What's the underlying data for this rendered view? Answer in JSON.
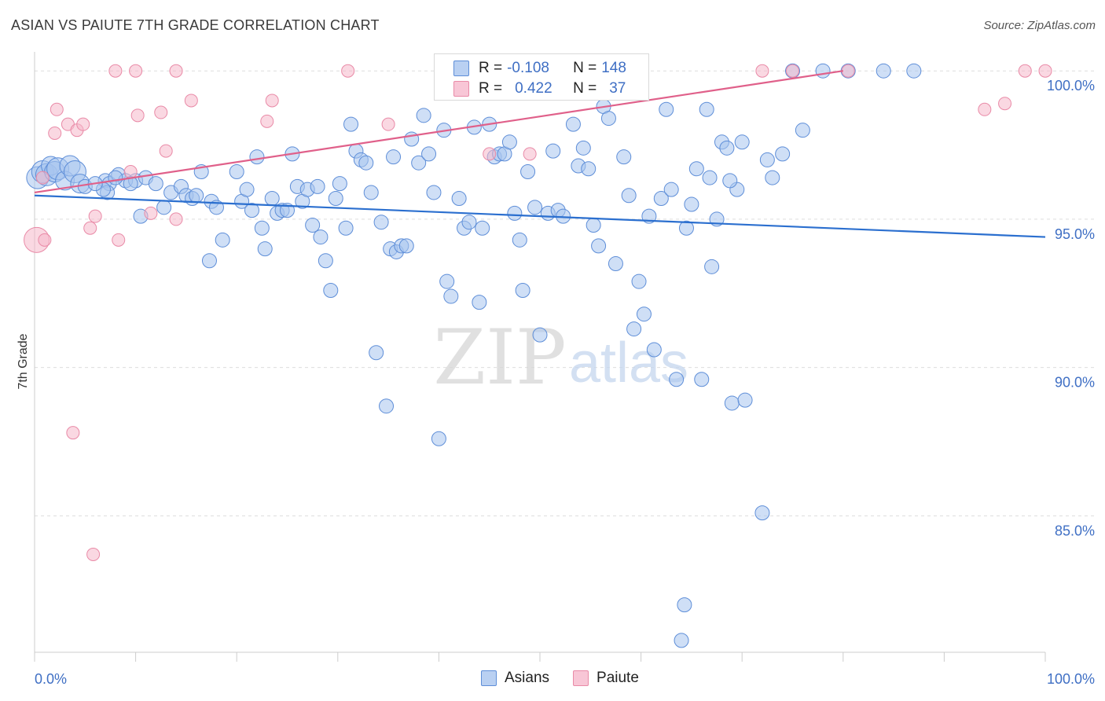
{
  "title": "ASIAN VS PAIUTE 7TH GRADE CORRELATION CHART",
  "source": "Source: ZipAtlas.com",
  "watermark": {
    "zip": "ZIP",
    "atlas": "atlas"
  },
  "legend": {
    "rows": [
      {
        "r_label": "R =",
        "r_value": "-0.108",
        "n_label": "N =",
        "n_value": "148"
      },
      {
        "r_label": "R =",
        "r_value": "0.422",
        "n_label": "N =",
        "n_value": "37"
      }
    ]
  },
  "bottom_legend": {
    "asians": "Asians",
    "paiute": "Paiute"
  },
  "colors": {
    "asians_fill": "#a8c4ee",
    "asians_stroke": "#5e8ed8",
    "asians_line": "#2b6fcf",
    "paiute_fill": "#f6b8cb",
    "paiute_stroke": "#e98aa7",
    "paiute_line": "#e0608a",
    "grid": "#dddddd",
    "tick_label": "#3f6fc4"
  },
  "chart_data": {
    "type": "scatter",
    "title": "ASIAN VS PAIUTE 7TH GRADE CORRELATION CHART",
    "xlabel": "",
    "ylabel": "7th Grade",
    "xlim": [
      0,
      100
    ],
    "ylim": [
      80.4,
      100.8
    ],
    "x_tick_labels": [
      "0.0%",
      "100.0%"
    ],
    "y_ticks": [
      85,
      90,
      95,
      100
    ],
    "y_tick_labels": [
      "85.0%",
      "90.0%",
      "95.0%",
      "100.0%"
    ],
    "grid": "horizontal dashed",
    "legend_position": "top-center",
    "series": [
      {
        "name": "Asians",
        "trend": {
          "x": [
            0,
            100
          ],
          "y": [
            95.8,
            94.4
          ]
        },
        "points": [
          [
            0.3,
            96.4
          ],
          [
            0.8,
            96.6
          ],
          [
            1.2,
            96.5
          ],
          [
            1.6,
            96.8
          ],
          [
            2.0,
            96.6
          ],
          [
            2.3,
            96.7
          ],
          [
            3.0,
            96.3
          ],
          [
            3.5,
            96.8
          ],
          [
            4.0,
            96.6
          ],
          [
            4.5,
            96.2
          ],
          [
            7.0,
            96.3
          ],
          [
            7.4,
            96.2
          ],
          [
            8.3,
            96.5
          ],
          [
            9.0,
            96.3
          ],
          [
            10.0,
            96.3
          ],
          [
            11.0,
            96.4
          ],
          [
            12.0,
            96.2
          ],
          [
            7.2,
            95.9
          ],
          [
            6.8,
            96.0
          ],
          [
            5.0,
            96.1
          ],
          [
            6.0,
            96.2
          ],
          [
            8.0,
            96.4
          ],
          [
            9.5,
            96.2
          ],
          [
            10.5,
            95.1
          ],
          [
            12.8,
            95.4
          ],
          [
            13.5,
            95.9
          ],
          [
            14.5,
            96.1
          ],
          [
            15.0,
            95.8
          ],
          [
            15.6,
            95.7
          ],
          [
            16.0,
            95.8
          ],
          [
            16.5,
            96.6
          ],
          [
            17.5,
            95.6
          ],
          [
            18.0,
            95.4
          ],
          [
            18.6,
            94.3
          ],
          [
            17.3,
            93.6
          ],
          [
            20.0,
            96.6
          ],
          [
            20.5,
            95.6
          ],
          [
            21.0,
            96.0
          ],
          [
            21.5,
            95.3
          ],
          [
            22.0,
            97.1
          ],
          [
            22.5,
            94.7
          ],
          [
            22.8,
            94.0
          ],
          [
            23.5,
            95.7
          ],
          [
            24.0,
            95.2
          ],
          [
            24.5,
            95.3
          ],
          [
            25.0,
            95.3
          ],
          [
            25.5,
            97.2
          ],
          [
            26.0,
            96.1
          ],
          [
            26.5,
            95.6
          ],
          [
            27.0,
            96.0
          ],
          [
            27.5,
            94.8
          ],
          [
            28.0,
            96.1
          ],
          [
            28.3,
            94.4
          ],
          [
            28.8,
            93.6
          ],
          [
            29.3,
            92.6
          ],
          [
            29.8,
            95.7
          ],
          [
            30.2,
            96.2
          ],
          [
            30.8,
            94.7
          ],
          [
            31.3,
            98.2
          ],
          [
            31.8,
            97.3
          ],
          [
            32.3,
            97.0
          ],
          [
            32.8,
            96.9
          ],
          [
            33.3,
            95.9
          ],
          [
            33.8,
            90.5
          ],
          [
            34.3,
            94.9
          ],
          [
            34.8,
            88.7
          ],
          [
            35.2,
            94.0
          ],
          [
            35.5,
            97.1
          ],
          [
            35.8,
            93.9
          ],
          [
            36.3,
            94.1
          ],
          [
            36.8,
            94.1
          ],
          [
            37.3,
            97.7
          ],
          [
            38.0,
            96.9
          ],
          [
            38.5,
            98.5
          ],
          [
            39.0,
            97.2
          ],
          [
            39.5,
            95.9
          ],
          [
            40.0,
            87.6
          ],
          [
            40.5,
            98.0
          ],
          [
            40.8,
            92.9
          ],
          [
            41.2,
            92.4
          ],
          [
            42.0,
            95.7
          ],
          [
            42.5,
            94.7
          ],
          [
            43.0,
            94.9
          ],
          [
            43.5,
            98.1
          ],
          [
            44.0,
            92.2
          ],
          [
            44.3,
            94.7
          ],
          [
            45.0,
            98.2
          ],
          [
            45.5,
            97.1
          ],
          [
            46.0,
            97.2
          ],
          [
            46.5,
            97.2
          ],
          [
            47.0,
            97.6
          ],
          [
            47.5,
            95.2
          ],
          [
            48.0,
            94.3
          ],
          [
            48.3,
            92.6
          ],
          [
            48.8,
            96.6
          ],
          [
            49.5,
            95.4
          ],
          [
            50.0,
            91.1
          ],
          [
            50.8,
            95.2
          ],
          [
            51.3,
            97.3
          ],
          [
            51.8,
            95.3
          ],
          [
            52.3,
            95.1
          ],
          [
            53.3,
            98.2
          ],
          [
            53.8,
            96.8
          ],
          [
            54.3,
            97.4
          ],
          [
            54.8,
            96.7
          ],
          [
            55.3,
            94.8
          ],
          [
            55.8,
            94.1
          ],
          [
            56.3,
            98.8
          ],
          [
            56.8,
            98.4
          ],
          [
            57.5,
            93.5
          ],
          [
            58.3,
            97.1
          ],
          [
            58.8,
            95.8
          ],
          [
            59.3,
            91.3
          ],
          [
            59.8,
            92.9
          ],
          [
            60.3,
            91.8
          ],
          [
            60.8,
            95.1
          ],
          [
            61.3,
            90.6
          ],
          [
            62.0,
            95.7
          ],
          [
            62.5,
            98.7
          ],
          [
            63.0,
            96.0
          ],
          [
            63.5,
            89.6
          ],
          [
            64.0,
            80.8
          ],
          [
            64.3,
            82.0
          ],
          [
            65.0,
            95.5
          ],
          [
            65.5,
            96.7
          ],
          [
            66.0,
            89.6
          ],
          [
            66.5,
            98.7
          ],
          [
            67.0,
            93.4
          ],
          [
            68.0,
            97.6
          ],
          [
            68.5,
            97.4
          ],
          [
            69.0,
            88.8
          ],
          [
            69.5,
            96.0
          ],
          [
            70.0,
            97.6
          ],
          [
            70.3,
            88.9
          ],
          [
            72.0,
            85.1
          ],
          [
            74.0,
            97.2
          ],
          [
            76.0,
            98.0
          ],
          [
            78.0,
            100.0
          ],
          [
            80.5,
            100.0
          ],
          [
            84.0,
            100.0
          ],
          [
            87.0,
            100.0
          ],
          [
            75.0,
            100.0
          ],
          [
            72.5,
            97.0
          ],
          [
            73.0,
            96.4
          ],
          [
            64.5,
            94.7
          ],
          [
            66.8,
            96.4
          ],
          [
            67.5,
            95.0
          ],
          [
            68.8,
            96.3
          ]
        ],
        "sizes_note": "several large markers near x≈0–4"
      },
      {
        "name": "Paiute",
        "trend": {
          "x": [
            0,
            80
          ],
          "y": [
            95.9,
            100.0
          ]
        },
        "points": [
          [
            0.2,
            94.3
          ],
          [
            1.0,
            94.3
          ],
          [
            0.8,
            96.4
          ],
          [
            2.0,
            97.9
          ],
          [
            2.2,
            98.7
          ],
          [
            3.3,
            98.2
          ],
          [
            4.2,
            98.0
          ],
          [
            4.8,
            98.2
          ],
          [
            3.8,
            87.8
          ],
          [
            5.5,
            94.7
          ],
          [
            6.0,
            95.1
          ],
          [
            8.3,
            94.3
          ],
          [
            9.5,
            96.6
          ],
          [
            10.2,
            98.5
          ],
          [
            11.5,
            95.2
          ],
          [
            12.5,
            98.6
          ],
          [
            13.0,
            97.3
          ],
          [
            14.0,
            95.0
          ],
          [
            15.5,
            99.0
          ],
          [
            23.0,
            98.3
          ],
          [
            23.5,
            99.0
          ],
          [
            5.8,
            83.7
          ],
          [
            8.0,
            100.0
          ],
          [
            10.0,
            100.0
          ],
          [
            14.0,
            100.0
          ],
          [
            31.0,
            100.0
          ],
          [
            35.0,
            98.2
          ],
          [
            45.0,
            97.2
          ],
          [
            45.5,
            100.0
          ],
          [
            49.0,
            97.2
          ],
          [
            75.0,
            100.0
          ],
          [
            80.5,
            100.0
          ],
          [
            100.0,
            100.0
          ],
          [
            94.0,
            98.7
          ],
          [
            96.0,
            98.9
          ],
          [
            72.0,
            100.0
          ],
          [
            98.0,
            100.0
          ]
        ]
      }
    ]
  }
}
